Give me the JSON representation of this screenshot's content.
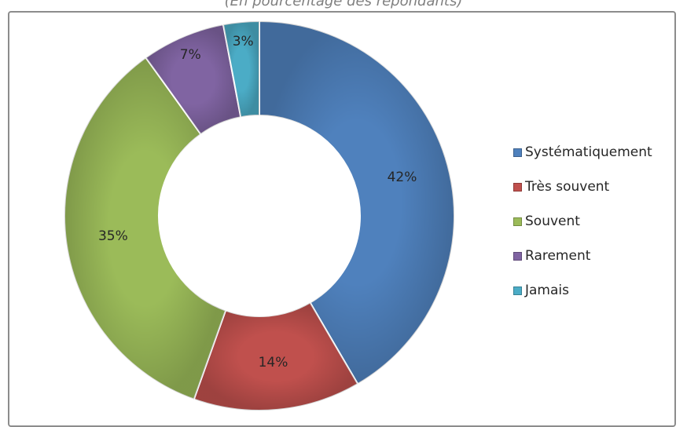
{
  "chart_data": {
    "type": "pie",
    "variant": "doughnut",
    "subtitle": "(En pourcentage des répondants)",
    "categories": [
      "Systématiquement",
      "Très souvent",
      "Souvent",
      "Rarement",
      "Jamais"
    ],
    "values": [
      42,
      14,
      35,
      7,
      3
    ],
    "value_labels": [
      "42%",
      "14%",
      "35%",
      "7%",
      "3%"
    ],
    "colors": [
      "#4f81bd",
      "#c0504d",
      "#9bbb59",
      "#8064a2",
      "#4bacc6"
    ],
    "legend_position": "right"
  }
}
